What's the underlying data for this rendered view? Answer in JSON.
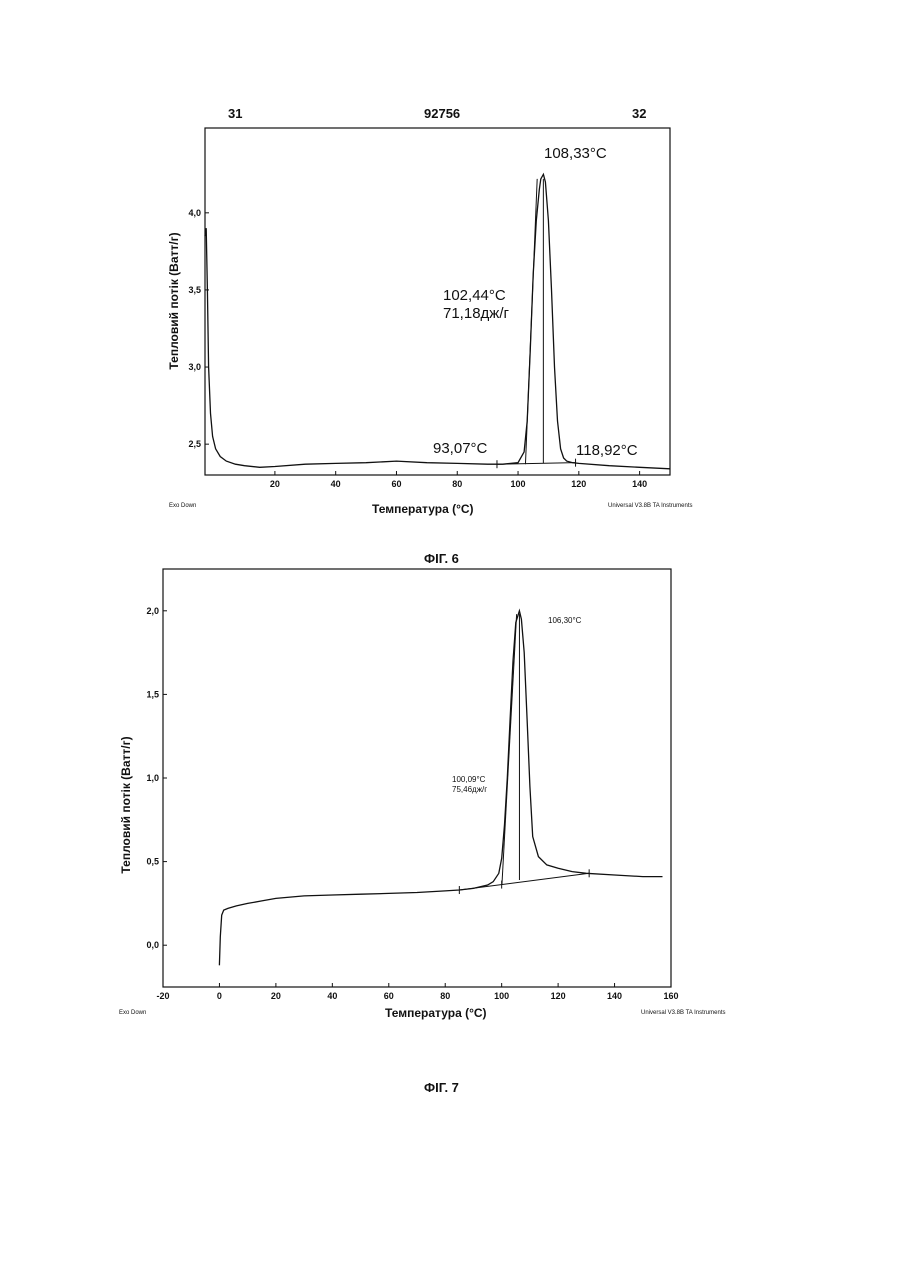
{
  "header": {
    "left": "31",
    "center": "92756",
    "right": "32"
  },
  "captions": {
    "fig6": "ФІГ. 6",
    "fig7": "ФІГ. 7"
  },
  "chart_data": [
    {
      "type": "line",
      "title": "",
      "xlabel": "Температура (°C)",
      "ylabel": "Тепловий потік (Ватт/г)",
      "xlim": [
        -3,
        150
      ],
      "ylim": [
        2.3,
        4.55
      ],
      "xticks": [
        20,
        40,
        60,
        80,
        100,
        120,
        140
      ],
      "xtick_labels": [
        "20",
        "40",
        "60",
        "80",
        "100",
        "120",
        "140"
      ],
      "yticks": [
        2.5,
        3.0,
        3.5,
        4.0
      ],
      "ytick_labels": [
        "2,5",
        "3,0",
        "3,5",
        "4,0"
      ],
      "grid": false,
      "footer_left": "Exo Down",
      "footer_right": "Universal V3.8B TA Instruments",
      "series": [
        {
          "x": [
            -3,
            -2.6,
            -2.2,
            -1.8,
            -1.2,
            -0.5,
            0.5,
            2,
            4,
            7,
            10,
            15,
            20,
            30,
            40,
            50,
            60,
            70,
            80,
            90,
            95,
            100,
            102,
            103,
            104,
            105,
            106,
            107,
            107.5,
            108.33,
            109,
            110,
            111,
            112,
            113,
            114,
            115,
            116,
            118,
            120,
            130,
            140,
            150
          ],
          "y": [
            3.85,
            3.9,
            3.5,
            3.0,
            2.7,
            2.55,
            2.47,
            2.42,
            2.39,
            2.37,
            2.36,
            2.35,
            2.355,
            2.37,
            2.375,
            2.38,
            2.39,
            2.38,
            2.375,
            2.37,
            2.37,
            2.38,
            2.45,
            2.65,
            3.1,
            3.6,
            3.95,
            4.15,
            4.22,
            4.25,
            4.2,
            3.95,
            3.5,
            3.0,
            2.65,
            2.47,
            2.41,
            2.39,
            2.38,
            2.375,
            2.36,
            2.35,
            2.34
          ]
        }
      ],
      "baseline": {
        "x": [
          93.07,
          118.92
        ],
        "y": [
          2.37,
          2.38
        ]
      },
      "markers_x": [
        93.07,
        118.92
      ],
      "verticals": [
        {
          "x1": 102.44,
          "y1": 2.37,
          "x2": 106.3,
          "y2": 4.22
        },
        {
          "x1": 108.33,
          "y1": 2.375,
          "x2": 108.33,
          "y2": 4.22
        }
      ],
      "annotations": {
        "peak": "108,33°C",
        "onset": "102,44°C",
        "enthalpy": "71,18дж/г",
        "start": "93,07°C",
        "end": "118,92°C"
      }
    },
    {
      "type": "line",
      "title": "",
      "xlabel": "Температура (°C)",
      "ylabel": "Тепловий потік (Ватт/г)",
      "xlim": [
        -20,
        160
      ],
      "ylim": [
        -0.25,
        2.25
      ],
      "xticks": [
        -20,
        0,
        20,
        40,
        60,
        80,
        100,
        120,
        140,
        160
      ],
      "xtick_labels": [
        "-20",
        "0",
        "20",
        "40",
        "60",
        "80",
        "100",
        "120",
        "140",
        "160"
      ],
      "yticks": [
        0.0,
        0.5,
        1.0,
        1.5,
        2.0
      ],
      "ytick_labels": [
        "0,0",
        "0,5",
        "1,0",
        "1,5",
        "2,0"
      ],
      "grid": false,
      "footer_left": "Exo Down",
      "footer_right": "Universal V3.8B TA Instruments",
      "series": [
        {
          "x": [
            0,
            0.3,
            0.8,
            1.5,
            3,
            6,
            10,
            15,
            20,
            30,
            40,
            50,
            60,
            70,
            80,
            85,
            90,
            95,
            97,
            99,
            100,
            101,
            102,
            103,
            104,
            105,
            106.3,
            107,
            108,
            109,
            110,
            111,
            113,
            116,
            120,
            125,
            130,
            140,
            150,
            157
          ],
          "y": [
            -0.12,
            0.05,
            0.18,
            0.21,
            0.22,
            0.235,
            0.25,
            0.265,
            0.28,
            0.295,
            0.3,
            0.305,
            0.31,
            0.315,
            0.325,
            0.33,
            0.34,
            0.36,
            0.38,
            0.43,
            0.52,
            0.72,
            1.0,
            1.35,
            1.7,
            1.93,
            2.0,
            1.95,
            1.75,
            1.35,
            0.95,
            0.65,
            0.53,
            0.48,
            0.46,
            0.44,
            0.43,
            0.42,
            0.41,
            0.41
          ]
        }
      ],
      "baseline": {
        "x": [
          85,
          131
        ],
        "y": [
          0.33,
          0.43
        ]
      },
      "markers_x": [
        85,
        100,
        131
      ],
      "verticals": [
        {
          "x1": 100.09,
          "y1": 0.36,
          "x2": 105.3,
          "y2": 1.98
        },
        {
          "x1": 106.3,
          "y1": 0.39,
          "x2": 106.3,
          "y2": 1.98
        }
      ],
      "annotations": {
        "peak": "106,30°C",
        "onset": "100,09°C",
        "enthalpy": "75,46дж/г"
      }
    }
  ]
}
